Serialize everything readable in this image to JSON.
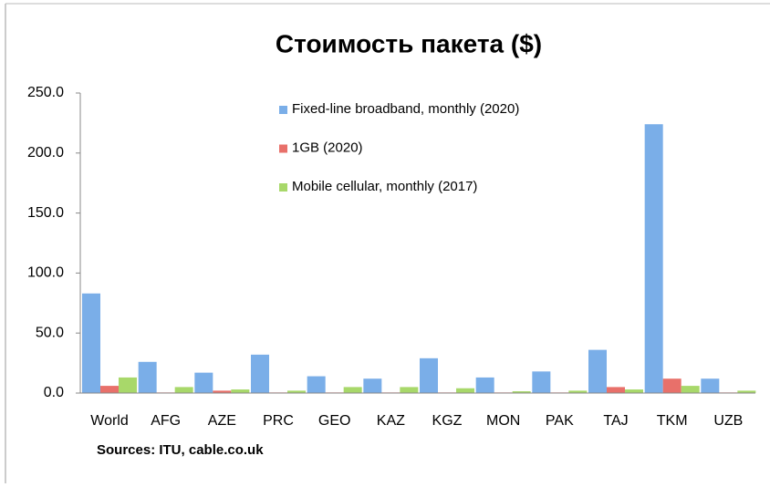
{
  "chart_data": {
    "type": "bar",
    "title": "Стоимость пакета ($)",
    "annotation": "Sources: ITU, cable.co.uk",
    "categories": [
      "World",
      "AFG",
      "AZE",
      "PRC",
      "GEO",
      "KAZ",
      "KGZ",
      "MON",
      "PAK",
      "TAJ",
      "TKM",
      "UZB"
    ],
    "series": [
      {
        "name": "Fixed-line broadband, monthly (2020)",
        "color": "#7aaee8",
        "values": [
          83,
          26,
          17,
          32,
          14,
          12,
          29,
          13,
          18,
          36,
          224,
          12
        ]
      },
      {
        "name": "1GB (2020)",
        "color": "#e8706a",
        "values": [
          6,
          0.5,
          2,
          0.5,
          0.5,
          0.5,
          0.5,
          0.5,
          0.5,
          5,
          12,
          0.5
        ]
      },
      {
        "name": "Mobile cellular, monthly (2017)",
        "color": "#a8d86a",
        "values": [
          13,
          5,
          3,
          2,
          5,
          5,
          4,
          1.5,
          2,
          3,
          6,
          2
        ]
      }
    ],
    "ylim": [
      0,
      250
    ],
    "yticks": [
      {
        "value": 0,
        "label": "0.0"
      },
      {
        "value": 50,
        "label": "50.0"
      },
      {
        "value": 100,
        "label": "100.0"
      },
      {
        "value": 150,
        "label": "150.0"
      },
      {
        "value": 200,
        "label": "200.0"
      },
      {
        "value": 250,
        "label": "250.0"
      }
    ],
    "legend": "top-center"
  }
}
